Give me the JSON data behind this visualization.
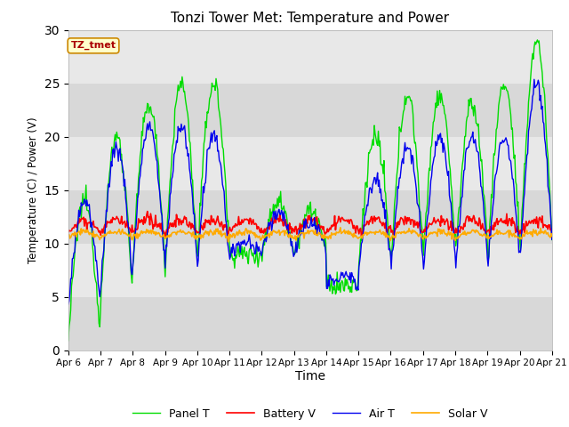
{
  "title": "Tonzi Tower Met: Temperature and Power",
  "xlabel": "Time",
  "ylabel": "Temperature (C) / Power (V)",
  "annotation": "TZ_tmet",
  "ylim": [
    0,
    30
  ],
  "yticks": [
    0,
    5,
    10,
    15,
    20,
    25,
    30
  ],
  "x_labels": [
    "Apr 6",
    "Apr 7",
    "Apr 8",
    "Apr 9",
    "Apr 10",
    "Apr 11",
    "Apr 12",
    "Apr 13",
    "Apr 14",
    "Apr 15",
    "Apr 16",
    "Apr 17",
    "Apr 18",
    "Apr 19",
    "Apr 20",
    "Apr 21"
  ],
  "bg_color": "#dcdcdc",
  "panel_color": "#00dd00",
  "battery_color": "#ff0000",
  "air_color": "#0000ee",
  "solar_color": "#ffaa00",
  "legend_labels": [
    "Panel T",
    "Battery V",
    "Air T",
    "Solar V"
  ],
  "n_points": 600,
  "band_colors": [
    "#d8d8d8",
    "#e8e8e8"
  ]
}
